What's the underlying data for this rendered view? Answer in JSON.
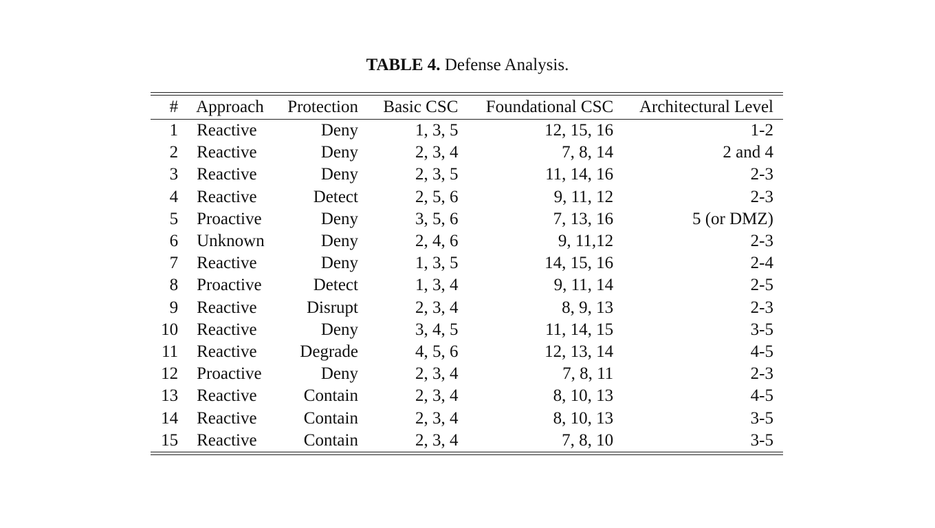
{
  "caption": {
    "label": "TABLE 4.",
    "text": "Defense Analysis."
  },
  "table": {
    "headers": [
      "#",
      "Approach",
      "Protection",
      "Basic CSC",
      "Foundational CSC",
      "Architectural Level"
    ],
    "rows": [
      [
        "1",
        "Reactive",
        "Deny",
        "1, 3, 5",
        "12, 15, 16",
        "1-2"
      ],
      [
        "2",
        "Reactive",
        "Deny",
        "2, 3, 4",
        "7, 8, 14",
        "2 and 4"
      ],
      [
        "3",
        "Reactive",
        "Deny",
        "2, 3, 5",
        "11, 14, 16",
        "2-3"
      ],
      [
        "4",
        "Reactive",
        "Detect",
        "2, 5, 6",
        "9, 11, 12",
        "2-3"
      ],
      [
        "5",
        "Proactive",
        "Deny",
        "3, 5, 6",
        "7, 13, 16",
        "5 (or DMZ)"
      ],
      [
        "6",
        "Unknown",
        "Deny",
        "2, 4, 6",
        "9, 11,12",
        "2-3"
      ],
      [
        "7",
        "Reactive",
        "Deny",
        "1, 3, 5",
        "14, 15, 16",
        "2-4"
      ],
      [
        "8",
        "Proactive",
        "Detect",
        "1, 3, 4",
        "9, 11, 14",
        "2-5"
      ],
      [
        "9",
        "Reactive",
        "Disrupt",
        "2, 3, 4",
        "8, 9, 13",
        "2-3"
      ],
      [
        "10",
        "Reactive",
        "Deny",
        "3, 4, 5",
        "11, 14, 15",
        "3-5"
      ],
      [
        "11",
        "Reactive",
        "Degrade",
        "4, 5, 6",
        "12, 13, 14",
        "4-5"
      ],
      [
        "12",
        "Proactive",
        "Deny",
        "2, 3, 4",
        "7, 8, 11",
        "2-3"
      ],
      [
        "13",
        "Reactive",
        "Contain",
        "2, 3, 4",
        "8, 10, 13",
        "4-5"
      ],
      [
        "14",
        "Reactive",
        "Contain",
        "2, 3, 4",
        "8, 10, 13",
        "3-5"
      ],
      [
        "15",
        "Reactive",
        "Contain",
        "2, 3, 4",
        "7, 8, 10",
        "3-5"
      ]
    ]
  }
}
